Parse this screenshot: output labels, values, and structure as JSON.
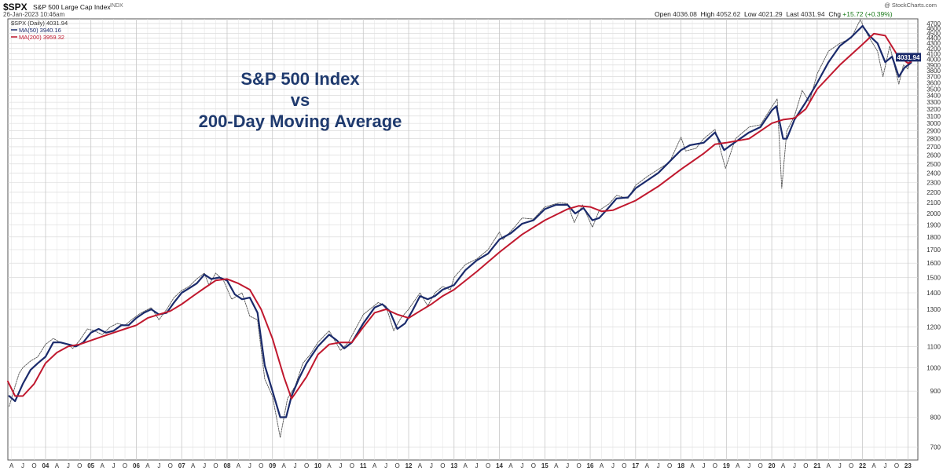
{
  "header": {
    "symbol": "$SPX",
    "name": "S&P 500 Large Cap Index",
    "exchange": "INDX",
    "date": "26-Jan-2023 10:46am",
    "watermark": "@ StockCharts.com",
    "open_label": "Open",
    "open_value": "4036.08",
    "high_label": "High",
    "high_value": "4052.62",
    "low_label": "Low",
    "low_value": "4021.29",
    "last_label": "Last",
    "last_value": "4031.94",
    "chg_label": "Chg",
    "chg_value": "+15.72 (+0.39%)"
  },
  "legend": {
    "price_entry": "$SPX (Daily) 4031.94",
    "ma50_entry": "MA(50) 3940.16",
    "ma200_entry": "MA(200) 3959.32"
  },
  "overlay_title": [
    "S&P 500 Index",
    "vs",
    "200-Day Moving Average"
  ],
  "last_price_tag": "4031.94",
  "colors": {
    "price": "#555555",
    "ma50": "#1a2a6b",
    "ma200": "#c0182e",
    "grid": "#d4d4d4",
    "title": "#1f3a6e"
  },
  "chart_data": {
    "type": "line",
    "scale": "log",
    "title": "S&P 500 Index vs 200-Day Moving Average",
    "ylim": [
      660,
      4800
    ],
    "xlim": [
      2003.17,
      2023.08
    ],
    "y_ticks": [
      700,
      800,
      900,
      1000,
      1100,
      1200,
      1300,
      1400,
      1500,
      1600,
      1700,
      1800,
      1900,
      2000,
      2100,
      2200,
      2300,
      2400,
      2500,
      2600,
      2700,
      2800,
      2900,
      3000,
      3100,
      3200,
      3300,
      3400,
      3500,
      3600,
      3700,
      3800,
      3900,
      4000,
      4100,
      4200,
      4300,
      4400,
      4500,
      4600,
      4700
    ],
    "x_ticks": [
      "A",
      "J",
      "O",
      "04",
      "A",
      "J",
      "O",
      "05",
      "A",
      "J",
      "O",
      "06",
      "A",
      "J",
      "O",
      "07",
      "A",
      "J",
      "O",
      "08",
      "A",
      "J",
      "O",
      "09",
      "A",
      "J",
      "O",
      "10",
      "A",
      "J",
      "O",
      "11",
      "A",
      "J",
      "O",
      "12",
      "A",
      "J",
      "O",
      "13",
      "A",
      "J",
      "O",
      "14",
      "A",
      "J",
      "O",
      "15",
      "A",
      "J",
      "O",
      "16",
      "A",
      "J",
      "O",
      "17",
      "A",
      "J",
      "O",
      "18",
      "A",
      "J",
      "O",
      "19",
      "A",
      "J",
      "O",
      "20",
      "A",
      "J",
      "O",
      "21",
      "A",
      "J",
      "O",
      "22",
      "A",
      "J",
      "O",
      "23"
    ],
    "series": [
      {
        "name": "$SPX (Daily)",
        "x": [
          2003.2,
          2003.25,
          2003.33,
          2003.42,
          2003.5,
          2003.67,
          2003.83,
          2004.0,
          2004.17,
          2004.33,
          2004.5,
          2004.6,
          2004.75,
          2004.92,
          2005.08,
          2005.25,
          2005.42,
          2005.58,
          2005.75,
          2005.92,
          2006.08,
          2006.33,
          2006.5,
          2006.67,
          2006.83,
          2007.0,
          2007.16,
          2007.33,
          2007.5,
          2007.6,
          2007.75,
          2007.92,
          2008.1,
          2008.33,
          2008.5,
          2008.67,
          2008.83,
          2009.0,
          2009.17,
          2009.33,
          2009.5,
          2009.67,
          2009.83,
          2010.0,
          2010.25,
          2010.42,
          2010.5,
          2010.67,
          2010.83,
          2011.0,
          2011.33,
          2011.5,
          2011.67,
          2011.83,
          2012.0,
          2012.25,
          2012.42,
          2012.58,
          2012.75,
          2012.92,
          2013.0,
          2013.25,
          2013.5,
          2013.75,
          2014.0,
          2014.08,
          2014.33,
          2014.5,
          2014.75,
          2015.0,
          2015.33,
          2015.5,
          2015.65,
          2015.83,
          2016.05,
          2016.2,
          2016.42,
          2016.58,
          2016.83,
          2017.0,
          2017.25,
          2017.5,
          2017.75,
          2018.0,
          2018.1,
          2018.33,
          2018.5,
          2018.75,
          2018.98,
          2019.2,
          2019.5,
          2019.75,
          2020.0,
          2020.12,
          2020.22,
          2020.33,
          2020.5,
          2020.67,
          2020.83,
          2021.0,
          2021.25,
          2021.5,
          2021.75,
          2021.95,
          2022.12,
          2022.33,
          2022.45,
          2022.6,
          2022.8,
          2022.9,
          2023.0,
          2023.07
        ],
        "values": [
          840,
          870,
          920,
          975,
          1000,
          1030,
          1050,
          1110,
          1140,
          1120,
          1110,
          1090,
          1130,
          1190,
          1180,
          1160,
          1200,
          1220,
          1210,
          1245,
          1275,
          1310,
          1240,
          1300,
          1370,
          1415,
          1440,
          1490,
          1530,
          1450,
          1530,
          1480,
          1360,
          1400,
          1260,
          1240,
          950,
          880,
          730,
          870,
          920,
          1020,
          1060,
          1120,
          1180,
          1110,
          1080,
          1120,
          1190,
          1270,
          1340,
          1320,
          1180,
          1250,
          1300,
          1400,
          1320,
          1400,
          1440,
          1420,
          1500,
          1590,
          1630,
          1700,
          1840,
          1780,
          1880,
          1960,
          1950,
          2060,
          2100,
          2090,
          1920,
          2080,
          1880,
          2030,
          2090,
          2170,
          2140,
          2270,
          2360,
          2440,
          2520,
          2820,
          2650,
          2680,
          2800,
          2920,
          2450,
          2800,
          2950,
          2980,
          3230,
          3350,
          2240,
          2900,
          3100,
          3480,
          3300,
          3750,
          4150,
          4300,
          4400,
          4780,
          4450,
          4150,
          3700,
          4250,
          3580,
          3900,
          3830,
          4031.94
        ]
      },
      {
        "name": "MA(50)",
        "x": [
          2003.2,
          2003.33,
          2003.5,
          2003.67,
          2003.83,
          2004.0,
          2004.17,
          2004.33,
          2004.5,
          2004.67,
          2004.83,
          2005.0,
          2005.17,
          2005.33,
          2005.5,
          2005.67,
          2005.83,
          2006.0,
          2006.17,
          2006.33,
          2006.5,
          2006.67,
          2006.83,
          2007.0,
          2007.17,
          2007.33,
          2007.5,
          2007.65,
          2007.83,
          2008.0,
          2008.17,
          2008.33,
          2008.5,
          2008.67,
          2008.83,
          2009.0,
          2009.17,
          2009.3,
          2009.42,
          2009.58,
          2009.75,
          2010.0,
          2010.25,
          2010.42,
          2010.58,
          2010.75,
          2011.0,
          2011.25,
          2011.42,
          2011.58,
          2011.75,
          2011.92,
          2012.08,
          2012.25,
          2012.42,
          2012.58,
          2012.75,
          2013.0,
          2013.25,
          2013.5,
          2013.75,
          2014.0,
          2014.25,
          2014.5,
          2014.75,
          2015.0,
          2015.25,
          2015.5,
          2015.67,
          2015.85,
          2016.05,
          2016.2,
          2016.42,
          2016.58,
          2016.83,
          2017.0,
          2017.5,
          2018.0,
          2018.2,
          2018.5,
          2018.75,
          2018.95,
          2019.1,
          2019.5,
          2019.75,
          2020.0,
          2020.1,
          2020.25,
          2020.33,
          2020.5,
          2020.75,
          2021.0,
          2021.25,
          2021.5,
          2021.75,
          2022.0,
          2022.15,
          2022.33,
          2022.5,
          2022.65,
          2022.8,
          2022.92,
          2023.0,
          2023.07
        ],
        "values": [
          880,
          860,
          930,
          990,
          1020,
          1050,
          1120,
          1120,
          1110,
          1100,
          1120,
          1170,
          1190,
          1170,
          1180,
          1210,
          1210,
          1250,
          1280,
          1300,
          1270,
          1280,
          1340,
          1400,
          1430,
          1460,
          1520,
          1490,
          1500,
          1480,
          1390,
          1360,
          1370,
          1280,
          1010,
          900,
          800,
          800,
          880,
          950,
          1020,
          1100,
          1160,
          1130,
          1090,
          1120,
          1220,
          1310,
          1330,
          1290,
          1190,
          1220,
          1290,
          1380,
          1360,
          1380,
          1420,
          1450,
          1550,
          1620,
          1670,
          1780,
          1830,
          1910,
          1940,
          2040,
          2080,
          2080,
          2000,
          2050,
          1940,
          1960,
          2060,
          2140,
          2150,
          2240,
          2400,
          2660,
          2720,
          2750,
          2880,
          2660,
          2720,
          2880,
          2950,
          3180,
          3240,
          2800,
          2800,
          3050,
          3300,
          3600,
          3950,
          4250,
          4420,
          4650,
          4450,
          4300,
          3950,
          4050,
          3700,
          3850,
          3900,
          3940
        ]
      },
      {
        "name": "MA(200)",
        "x": [
          2003.17,
          2003.33,
          2003.5,
          2003.75,
          2004.0,
          2004.25,
          2004.5,
          2004.75,
          2005.0,
          2005.25,
          2005.5,
          2005.75,
          2006.0,
          2006.25,
          2006.5,
          2006.75,
          2007.0,
          2007.25,
          2007.5,
          2007.75,
          2008.0,
          2008.25,
          2008.5,
          2008.75,
          2009.0,
          2009.25,
          2009.42,
          2009.5,
          2009.75,
          2010.0,
          2010.25,
          2010.5,
          2010.75,
          2011.0,
          2011.25,
          2011.5,
          2011.75,
          2012.0,
          2012.25,
          2012.5,
          2012.75,
          2013.0,
          2013.5,
          2014.0,
          2014.5,
          2015.0,
          2015.5,
          2015.75,
          2016.0,
          2016.25,
          2016.5,
          2017.0,
          2017.5,
          2018.0,
          2018.5,
          2018.75,
          2019.0,
          2019.5,
          2020.0,
          2020.25,
          2020.5,
          2020.75,
          2021.0,
          2021.5,
          2022.0,
          2022.25,
          2022.5,
          2022.75,
          2023.0,
          2023.07
        ],
        "values": [
          940,
          880,
          880,
          930,
          1020,
          1070,
          1100,
          1110,
          1130,
          1150,
          1170,
          1190,
          1210,
          1250,
          1270,
          1290,
          1330,
          1380,
          1430,
          1480,
          1490,
          1460,
          1420,
          1300,
          1140,
          960,
          870,
          890,
          960,
          1060,
          1110,
          1120,
          1120,
          1200,
          1280,
          1300,
          1270,
          1250,
          1290,
          1330,
          1380,
          1420,
          1540,
          1680,
          1820,
          1940,
          2040,
          2070,
          2060,
          2020,
          2030,
          2120,
          2260,
          2440,
          2620,
          2730,
          2750,
          2800,
          3000,
          3050,
          3070,
          3200,
          3500,
          3900,
          4280,
          4490,
          4450,
          4100,
          3930,
          3959.32
        ]
      }
    ]
  }
}
